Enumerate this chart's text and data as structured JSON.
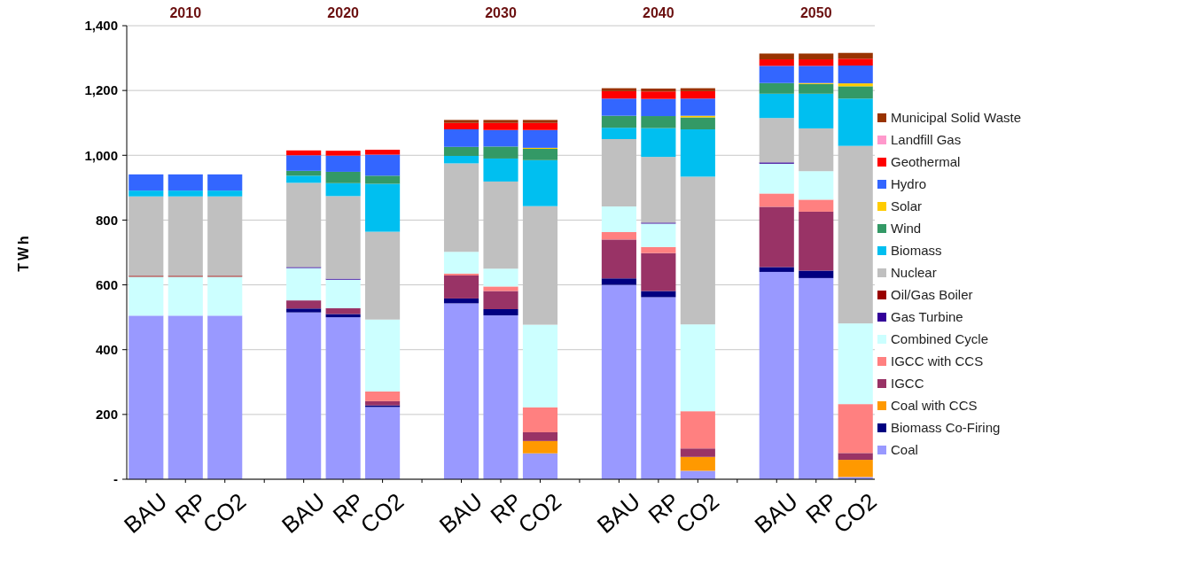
{
  "chart_data": {
    "type": "bar",
    "stacked": true,
    "ylabel": "TWh",
    "categories": [
      "BAU",
      "RP",
      "CO2",
      null,
      "BAU",
      "RP",
      "CO2",
      null,
      "BAU",
      "RP",
      "CO2",
      null,
      "BAU",
      "RP",
      "CO2",
      null,
      "BAU",
      "RP",
      "CO2"
    ],
    "annotations": [
      "2010",
      "2020",
      "2030",
      "2040",
      "2050"
    ],
    "ylim": [
      0,
      1400
    ],
    "yticks": [
      {
        "value": 0,
        "label": "-"
      },
      200,
      400,
      600,
      800,
      {
        "value": 1000,
        "label": "1,000"
      },
      {
        "value": 1200,
        "label": "1,200"
      },
      {
        "value": 1400,
        "label": "1,400"
      }
    ],
    "grid": "y",
    "legend": "right",
    "series": [
      {
        "name": "Coal",
        "color": "#9999ff",
        "values": [
          505,
          505,
          505,
          null,
          515,
          500,
          223,
          null,
          543,
          506,
          80,
          null,
          600,
          562,
          26,
          null,
          640,
          621,
          7
        ]
      },
      {
        "name": "Biomass Co-Firing",
        "color": "#000080",
        "values": [
          0,
          0,
          0,
          null,
          12,
          10,
          5,
          null,
          15,
          19,
          0,
          null,
          20,
          19,
          0,
          null,
          15,
          23,
          0
        ]
      },
      {
        "name": "Coal with CCS",
        "color": "#ff9900",
        "values": [
          0,
          0,
          0,
          null,
          0,
          0,
          0,
          null,
          0,
          0,
          38,
          null,
          0,
          0,
          43,
          null,
          0,
          0,
          53
        ]
      },
      {
        "name": "IGCC",
        "color": "#993366",
        "values": [
          0,
          0,
          0,
          null,
          25,
          18,
          13,
          null,
          71,
          56,
          27,
          null,
          120,
          117,
          26,
          null,
          186,
          182,
          21
        ]
      },
      {
        "name": "IGCC with CCS",
        "color": "#ff8080",
        "values": [
          0,
          0,
          0,
          null,
          0,
          0,
          30,
          null,
          6,
          14,
          77,
          null,
          23,
          19,
          115,
          null,
          41,
          37,
          151
        ]
      },
      {
        "name": "Combined Cycle",
        "color": "#ccffff",
        "values": [
          120,
          120,
          120,
          null,
          100,
          88,
          222,
          null,
          67,
          55,
          255,
          null,
          79,
          72,
          268,
          null,
          92,
          88,
          249
        ]
      },
      {
        "name": "Gas Turbine",
        "color": "#330099",
        "values": [
          0,
          0,
          0,
          null,
          3,
          3,
          0,
          null,
          0,
          0,
          0,
          null,
          0,
          3,
          0,
          null,
          4,
          0,
          0
        ]
      },
      {
        "name": "Oil/Gas Boiler",
        "color": "#990000",
        "values": [
          3,
          3,
          3,
          null,
          0,
          0,
          0,
          null,
          0,
          0,
          0,
          null,
          0,
          0,
          0,
          null,
          0,
          0,
          0
        ]
      },
      {
        "name": "Nuclear",
        "color": "#c0c0c0",
        "values": [
          245,
          245,
          245,
          null,
          260,
          255,
          271,
          null,
          273,
          269,
          366,
          null,
          208,
          203,
          456,
          null,
          137,
          132,
          548
        ]
      },
      {
        "name": "Biomass",
        "color": "#00bff0",
        "values": [
          18,
          18,
          18,
          null,
          22,
          40,
          148,
          null,
          23,
          71,
          142,
          null,
          35,
          89,
          146,
          null,
          75,
          107,
          146
        ]
      },
      {
        "name": "Wind",
        "color": "#339966",
        "values": [
          0,
          0,
          0,
          null,
          15,
          35,
          25,
          null,
          28,
          37,
          35,
          null,
          37,
          37,
          37,
          null,
          33,
          30,
          38
        ]
      },
      {
        "name": "Solar",
        "color": "#ffcc00",
        "values": [
          0,
          0,
          0,
          null,
          0,
          0,
          0,
          null,
          0,
          0,
          3,
          null,
          0,
          0,
          5,
          null,
          0,
          3,
          9
        ]
      },
      {
        "name": "Hydro",
        "color": "#3366ff",
        "values": [
          50,
          50,
          50,
          null,
          48,
          50,
          65,
          null,
          54,
          51,
          55,
          null,
          53,
          53,
          53,
          null,
          53,
          53,
          55
        ]
      },
      {
        "name": "Geothermal",
        "color": "#ff0000",
        "values": [
          0,
          0,
          0,
          null,
          15,
          15,
          15,
          null,
          20,
          22,
          22,
          null,
          23,
          23,
          23,
          null,
          20,
          20,
          21
        ]
      },
      {
        "name": "Landfill Gas",
        "color": "#ff99cc",
        "values": [
          0,
          0,
          0,
          null,
          0,
          0,
          0,
          null,
          0,
          0,
          0,
          null,
          0,
          0,
          0,
          null,
          0,
          0,
          0
        ]
      },
      {
        "name": "Municipal Solid Waste",
        "color": "#993300",
        "values": [
          0,
          0,
          0,
          null,
          0,
          0,
          0,
          null,
          9,
          9,
          9,
          null,
          9,
          9,
          9,
          null,
          18,
          18,
          18
        ]
      }
    ]
  }
}
